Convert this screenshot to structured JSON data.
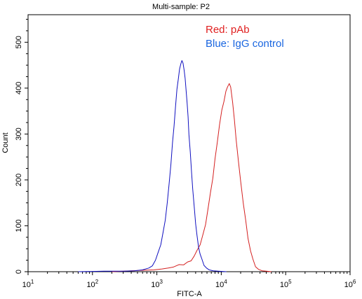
{
  "chart_data": {
    "type": "line",
    "title": "Multi-sample: P2",
    "xlabel": "FITC-A",
    "ylabel": "Count",
    "x_scale": "log",
    "xlim": [
      10,
      1000000
    ],
    "ylim": [
      0,
      560
    ],
    "x_ticks": [
      {
        "base": "10",
        "exp": "1",
        "value": 10
      },
      {
        "base": "10",
        "exp": "2",
        "value": 100
      },
      {
        "base": "10",
        "exp": "3",
        "value": 1000
      },
      {
        "base": "10",
        "exp": "4",
        "value": 10000
      },
      {
        "base": "10",
        "exp": "5",
        "value": 100000
      },
      {
        "base": "10",
        "exp": "6",
        "value": 1000000
      }
    ],
    "y_ticks": [
      "0",
      "100",
      "200",
      "300",
      "400",
      "500"
    ],
    "legend": [
      {
        "label": "Red: pAb",
        "color": "#e02020"
      },
      {
        "label": "Blue: IgG control",
        "color": "#1a66e0"
      }
    ],
    "series": [
      {
        "name": "Red: pAb",
        "color": "#d42020",
        "points": [
          [
            200,
            0
          ],
          [
            400,
            2
          ],
          [
            600,
            3
          ],
          [
            900,
            4
          ],
          [
            1200,
            6
          ],
          [
            1500,
            8
          ],
          [
            1800,
            10
          ],
          [
            2200,
            13
          ],
          [
            2600,
            16
          ],
          [
            3000,
            20
          ],
          [
            3400,
            26
          ],
          [
            3800,
            34
          ],
          [
            4200,
            44
          ],
          [
            4700,
            60
          ],
          [
            5200,
            80
          ],
          [
            5700,
            105
          ],
          [
            6200,
            135
          ],
          [
            6800,
            170
          ],
          [
            7400,
            205
          ],
          [
            8000,
            245
          ],
          [
            8700,
            285
          ],
          [
            9400,
            320
          ],
          [
            10200,
            350
          ],
          [
            11000,
            372
          ],
          [
            11800,
            392
          ],
          [
            12500,
            405
          ],
          [
            13300,
            410
          ],
          [
            14000,
            400
          ],
          [
            15000,
            370
          ],
          [
            16000,
            330
          ],
          [
            17000,
            290
          ],
          [
            18500,
            240
          ],
          [
            20000,
            195
          ],
          [
            22000,
            150
          ],
          [
            24000,
            110
          ],
          [
            26000,
            75
          ],
          [
            28500,
            45
          ],
          [
            31000,
            25
          ],
          [
            34000,
            12
          ],
          [
            38000,
            5
          ],
          [
            43000,
            2
          ],
          [
            50000,
            1
          ],
          [
            60000,
            0
          ]
        ]
      },
      {
        "name": "Blue: IgG control",
        "color": "#1010c0",
        "points": [
          [
            60,
            0
          ],
          [
            150,
            1
          ],
          [
            300,
            1
          ],
          [
            450,
            2
          ],
          [
            600,
            4
          ],
          [
            750,
            8
          ],
          [
            850,
            15
          ],
          [
            950,
            25
          ],
          [
            1050,
            40
          ],
          [
            1150,
            60
          ],
          [
            1250,
            85
          ],
          [
            1350,
            115
          ],
          [
            1450,
            150
          ],
          [
            1550,
            190
          ],
          [
            1650,
            235
          ],
          [
            1750,
            280
          ],
          [
            1850,
            320
          ],
          [
            1950,
            360
          ],
          [
            2050,
            395
          ],
          [
            2150,
            420
          ],
          [
            2250,
            440
          ],
          [
            2350,
            455
          ],
          [
            2450,
            460
          ],
          [
            2550,
            452
          ],
          [
            2650,
            440
          ],
          [
            2750,
            420
          ],
          [
            2850,
            395
          ],
          [
            2950,
            368
          ],
          [
            3050,
            335
          ],
          [
            3150,
            300
          ],
          [
            3300,
            260
          ],
          [
            3450,
            220
          ],
          [
            3600,
            180
          ],
          [
            3800,
            140
          ],
          [
            4000,
            105
          ],
          [
            4200,
            78
          ],
          [
            4450,
            55
          ],
          [
            4700,
            38
          ],
          [
            5000,
            25
          ],
          [
            5400,
            15
          ],
          [
            5900,
            8
          ],
          [
            6500,
            4
          ],
          [
            7500,
            2
          ],
          [
            9000,
            1
          ],
          [
            12000,
            0
          ]
        ]
      }
    ]
  }
}
